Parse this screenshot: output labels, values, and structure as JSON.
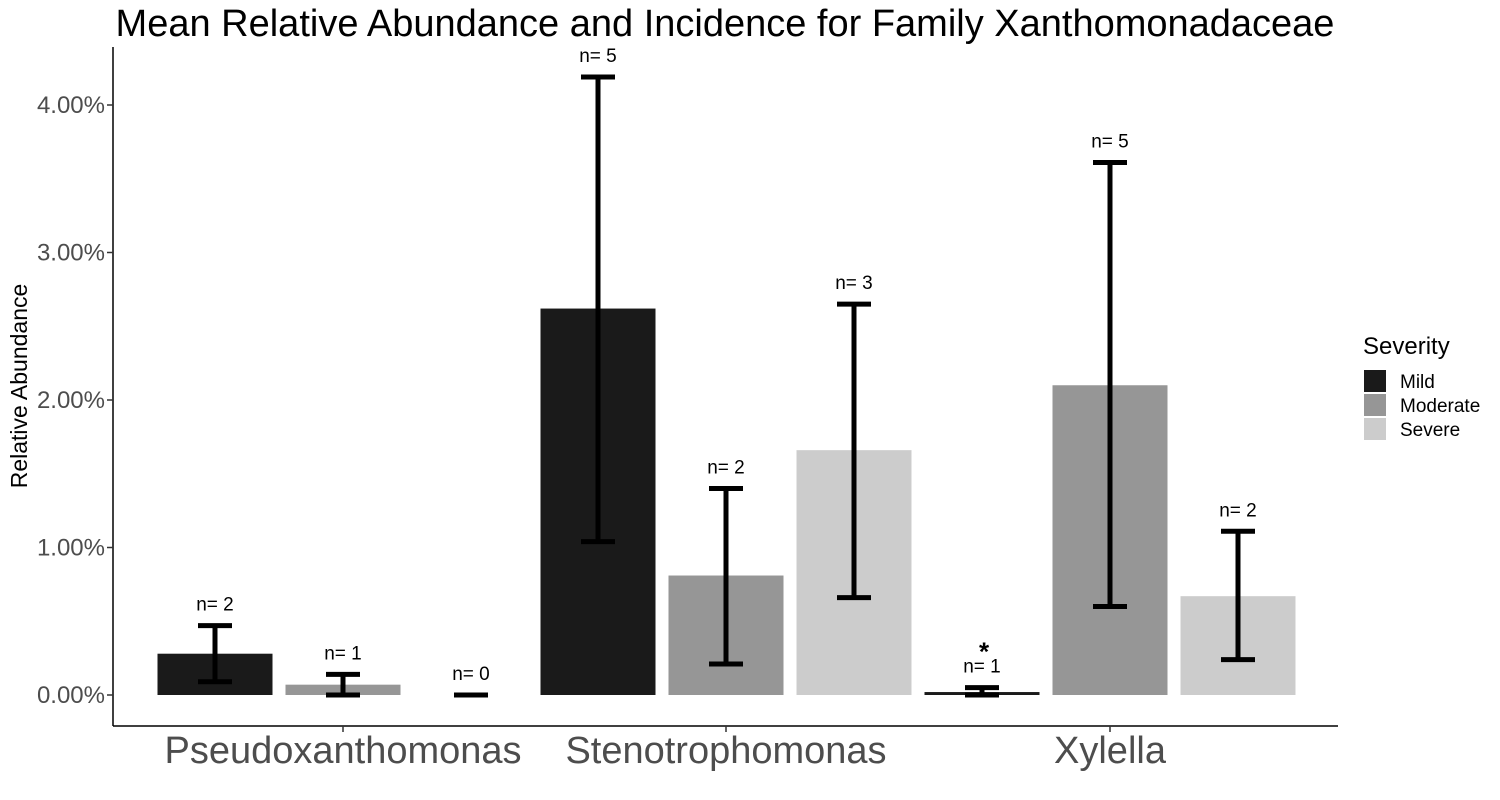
{
  "chart_data": {
    "type": "bar",
    "title": "Mean Relative Abundance and Incidence for Family Xanthomonadaceae",
    "xlabel": "",
    "ylabel": "Relative Abundance",
    "ylim": [
      -0.21,
      4.4
    ],
    "yticks": [
      0,
      1,
      2,
      3,
      4
    ],
    "ytick_labels": [
      "0.00%",
      "1.00%",
      "2.00%",
      "3.00%",
      "4.00%"
    ],
    "categories": [
      "Pseudoxanthomonas",
      "Stenotrophomonas",
      "Xylella"
    ],
    "grid": false,
    "legend": {
      "title": "Severity",
      "position": "right"
    },
    "series": [
      {
        "name": "Mild",
        "color": "#1a1a1a",
        "values": [
          0.28,
          2.62,
          0.02
        ],
        "error_low": [
          0.09,
          1.04,
          0.0
        ],
        "error_high": [
          0.47,
          4.19,
          0.05
        ],
        "n_labels": [
          "n= 2",
          "n= 5",
          "n= 1"
        ]
      },
      {
        "name": "Moderate",
        "color": "#969696",
        "values": [
          0.07,
          0.81,
          2.1
        ],
        "error_low": [
          0.0,
          0.21,
          0.6
        ],
        "error_high": [
          0.14,
          1.4,
          3.61
        ],
        "n_labels": [
          "n= 1",
          "n= 2",
          "n= 5"
        ]
      },
      {
        "name": "Severe",
        "color": "#cccccc",
        "values": [
          0.0,
          1.66,
          0.67
        ],
        "error_low": [
          0.0,
          0.66,
          0.24
        ],
        "error_high": [
          0.0,
          2.65,
          1.11
        ],
        "n_labels": [
          "n= 0",
          "n= 3",
          "n= 2"
        ]
      }
    ],
    "annotations": [
      {
        "text": "*",
        "category": "Xylella",
        "series": "Mild"
      }
    ]
  }
}
